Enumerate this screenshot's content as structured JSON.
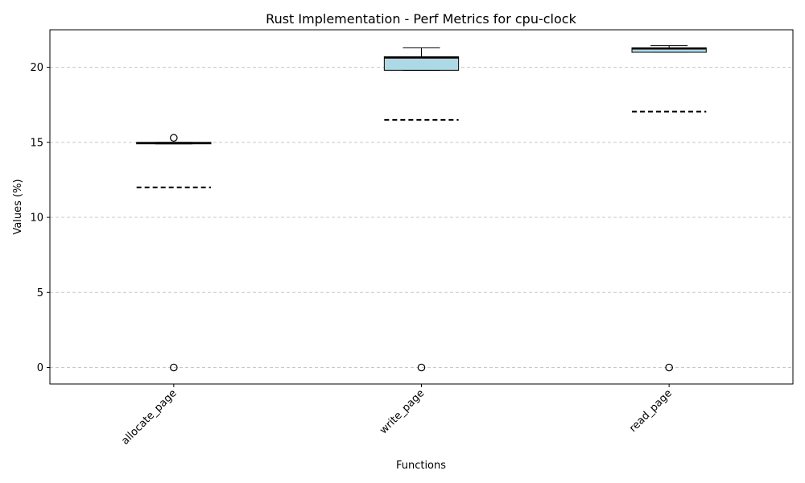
{
  "chart_data": {
    "type": "box",
    "title": "Rust Implementation - Perf Metrics for cpu-clock",
    "xlabel": "Functions",
    "ylabel": "Values (%)",
    "ylim": [
      -1.1,
      22.5
    ],
    "yticks": [
      0,
      5,
      10,
      15,
      20
    ],
    "grid": "y-dashed",
    "categories": [
      "allocate_page",
      "write_page",
      "read_page"
    ],
    "boxes": [
      {
        "category": "allocate_page",
        "whisker_low": 14.9,
        "q1": 14.9,
        "median": 14.95,
        "q3": 15.0,
        "whisker_high": 15.0,
        "mean": 12.0,
        "outliers": [
          15.3,
          0.0
        ]
      },
      {
        "category": "write_page",
        "whisker_low": 19.8,
        "q1": 19.8,
        "median": 20.65,
        "q3": 20.7,
        "whisker_high": 21.3,
        "mean": 16.5,
        "outliers": [
          0.0
        ]
      },
      {
        "category": "read_page",
        "whisker_low": 21.0,
        "q1": 21.0,
        "median": 21.25,
        "q3": 21.3,
        "whisker_high": 21.45,
        "mean": 17.05,
        "outliers": [
          0.0
        ]
      }
    ],
    "colors": {
      "box_fill": "#add8e6",
      "edge": "#000000",
      "grid": "#c8c8c8"
    }
  }
}
